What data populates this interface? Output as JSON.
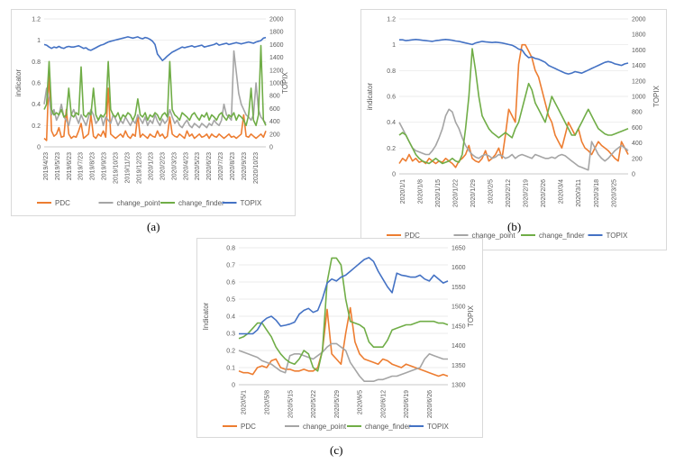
{
  "colors": {
    "PDC": "#ed7d31",
    "change_point": "#a5a5a5",
    "change_finder": "#70ad47",
    "TOPIX": "#4472c4"
  },
  "chart_data": [
    {
      "id": "a",
      "type": "line",
      "caption": "(a)",
      "ylabel": "indicator",
      "y2label": "TOPIX",
      "ylim": [
        0,
        1.2
      ],
      "yticks": [
        "0",
        "0.2",
        "0.4",
        "0.6",
        "0.8",
        "1",
        "1.2"
      ],
      "y2lim": [
        0,
        2000
      ],
      "y2ticks": [
        "0",
        "200",
        "400",
        "600",
        "800",
        "1000",
        "1200",
        "1400",
        "1600",
        "1800",
        "2000"
      ],
      "xticks": [
        "2019/4/23",
        "2019/5/23",
        "2019/6/23",
        "2019/7/23",
        "2019/8/23",
        "2019/9/23",
        "2019/10/23",
        "2019/11/23",
        "2019/12/23",
        "2020/1/23",
        "2020/2/23",
        "2020/3/23",
        "2020/4/23",
        "2020/5/23",
        "2020/6/23",
        "2020/7/23",
        "2020/8/23",
        "2020/9/23",
        "2020/10/23"
      ],
      "legend": [
        "PDC",
        "change_point",
        "change_finder",
        "TOPIX"
      ],
      "series": [
        {
          "name": "PDC",
          "axis": "left",
          "values": [
            0.08,
            0.06,
            0.72,
            0.15,
            0.1,
            0.12,
            0.18,
            0.09,
            0.1,
            0.35,
            0.12,
            0.08,
            0.1,
            0.09,
            0.15,
            0.22,
            0.08,
            0.1,
            0.12,
            0.3,
            0.1,
            0.08,
            0.12,
            0.1,
            0.15,
            0.09,
            0.55,
            0.12,
            0.1,
            0.08,
            0.1,
            0.12,
            0.09,
            0.15,
            0.1,
            0.08,
            0.12,
            0.1,
            0.3,
            0.09,
            0.12,
            0.1,
            0.08,
            0.12,
            0.1,
            0.09,
            0.15,
            0.1,
            0.12,
            0.08,
            0.1,
            0.28,
            0.12,
            0.1,
            0.09,
            0.12,
            0.1,
            0.08,
            0.15,
            0.1,
            0.12,
            0.08,
            0.1,
            0.12,
            0.09,
            0.1,
            0.12,
            0.08,
            0.12,
            0.1,
            0.09,
            0.12,
            0.1,
            0.08,
            0.1,
            0.12,
            0.09,
            0.1,
            0.08,
            0.1,
            0.12,
            0.3,
            0.1,
            0.09,
            0.12,
            0.1,
            0.08,
            0.1,
            0.12,
            0.09,
            0.15
          ]
        },
        {
          "name": "change_point",
          "axis": "left",
          "values": [
            0.4,
            0.55,
            0.45,
            0.3,
            0.35,
            0.25,
            0.3,
            0.4,
            0.28,
            0.25,
            0.2,
            0.3,
            0.35,
            0.28,
            0.22,
            0.3,
            0.25,
            0.2,
            0.28,
            0.35,
            0.3,
            0.22,
            0.25,
            0.3,
            0.2,
            0.28,
            0.25,
            0.22,
            0.3,
            0.26,
            0.2,
            0.25,
            0.22,
            0.28,
            0.24,
            0.2,
            0.25,
            0.22,
            0.3,
            0.26,
            0.22,
            0.28,
            0.2,
            0.25,
            0.22,
            0.3,
            0.24,
            0.2,
            0.26,
            0.22,
            0.25,
            0.35,
            0.28,
            0.22,
            0.25,
            0.2,
            0.18,
            0.22,
            0.25,
            0.2,
            0.18,
            0.22,
            0.2,
            0.18,
            0.22,
            0.2,
            0.18,
            0.22,
            0.2,
            0.25,
            0.22,
            0.2,
            0.25,
            0.4,
            0.3,
            0.28,
            0.25,
            0.9,
            0.7,
            0.5,
            0.4,
            0.35,
            0.3,
            0.28,
            0.25,
            0.3,
            0.6,
            0.35,
            0.28,
            0.25,
            0.22
          ]
        },
        {
          "name": "change_finder",
          "axis": "left",
          "values": [
            0.35,
            0.4,
            0.8,
            0.35,
            0.3,
            0.32,
            0.3,
            0.35,
            0.28,
            0.3,
            0.55,
            0.3,
            0.28,
            0.32,
            0.3,
            0.75,
            0.3,
            0.28,
            0.32,
            0.3,
            0.55,
            0.3,
            0.25,
            0.3,
            0.28,
            0.32,
            0.8,
            0.35,
            0.3,
            0.28,
            0.32,
            0.25,
            0.3,
            0.28,
            0.32,
            0.3,
            0.25,
            0.3,
            0.45,
            0.3,
            0.28,
            0.32,
            0.25,
            0.3,
            0.28,
            0.32,
            0.3,
            0.25,
            0.3,
            0.32,
            0.28,
            0.8,
            0.35,
            0.3,
            0.28,
            0.25,
            0.32,
            0.3,
            0.28,
            0.25,
            0.3,
            0.32,
            0.28,
            0.25,
            0.3,
            0.28,
            0.32,
            0.25,
            0.3,
            0.28,
            0.25,
            0.3,
            0.32,
            0.28,
            0.25,
            0.3,
            0.28,
            0.32,
            0.25,
            0.3,
            0.28,
            0.25,
            0.2,
            0.3,
            0.55,
            0.25,
            0.2,
            0.3,
            0.95,
            0.25,
            0.2
          ]
        },
        {
          "name": "TOPIX",
          "axis": "right",
          "values": [
            1600,
            1590,
            1560,
            1540,
            1560,
            1550,
            1570,
            1550,
            1540,
            1560,
            1570,
            1560,
            1560,
            1570,
            1580,
            1560,
            1540,
            1550,
            1520,
            1510,
            1530,
            1550,
            1570,
            1590,
            1600,
            1620,
            1640,
            1650,
            1660,
            1670,
            1680,
            1690,
            1700,
            1710,
            1720,
            1710,
            1700,
            1710,
            1720,
            1700,
            1690,
            1710,
            1700,
            1680,
            1650,
            1600,
            1450,
            1400,
            1350,
            1380,
            1420,
            1450,
            1480,
            1500,
            1520,
            1540,
            1560,
            1550,
            1560,
            1570,
            1580,
            1560,
            1570,
            1580,
            1590,
            1560,
            1570,
            1580,
            1590,
            1600,
            1620,
            1590,
            1600,
            1610,
            1620,
            1600,
            1610,
            1620,
            1630,
            1620,
            1610,
            1620,
            1630,
            1640,
            1630,
            1620,
            1640,
            1650,
            1660,
            1700,
            1710
          ]
        }
      ]
    },
    {
      "id": "b",
      "type": "line",
      "caption": "(b)",
      "ylabel": "indicator",
      "y2label": "TOPIX",
      "ylim": [
        0,
        1.2
      ],
      "yticks": [
        "0",
        "0.2",
        "0.4",
        "0.6",
        "0.8",
        "1",
        "1.2"
      ],
      "y2lim": [
        0,
        2000
      ],
      "y2ticks": [
        "0",
        "200",
        "400",
        "600",
        "800",
        "1000",
        "1200",
        "1400",
        "1600",
        "1800",
        "2000"
      ],
      "xticks": [
        "2020/1/1",
        "2020/1/8",
        "2020/1/15",
        "2020/1/22",
        "2020/1/29",
        "2020/2/5",
        "2020/2/12",
        "2020/2/19",
        "2020/2/26",
        "2020/3/4",
        "2020/3/11",
        "2020/3/18",
        "2020/3/25"
      ],
      "legend": [
        "PDC",
        "change_point",
        "change_finder",
        "TOPIX"
      ],
      "series": [
        {
          "name": "PDC",
          "axis": "left",
          "values": [
            0.08,
            0.12,
            0.1,
            0.15,
            0.1,
            0.12,
            0.09,
            0.1,
            0.08,
            0.12,
            0.1,
            0.08,
            0.1,
            0.09,
            0.12,
            0.1,
            0.08,
            0.05,
            0.1,
            0.12,
            0.15,
            0.22,
            0.12,
            0.1,
            0.09,
            0.12,
            0.18,
            0.1,
            0.12,
            0.15,
            0.2,
            0.12,
            0.3,
            0.5,
            0.45,
            0.4,
            0.85,
            1.0,
            1.0,
            0.95,
            0.9,
            0.8,
            0.75,
            0.65,
            0.55,
            0.45,
            0.4,
            0.3,
            0.25,
            0.2,
            0.3,
            0.4,
            0.35,
            0.3,
            0.35,
            0.25,
            0.2,
            0.18,
            0.15,
            0.2,
            0.25,
            0.22,
            0.2,
            0.18,
            0.15,
            0.12,
            0.1,
            0.25,
            0.2,
            0.15
          ]
        },
        {
          "name": "change_point",
          "axis": "left",
          "values": [
            0.4,
            0.35,
            0.3,
            0.25,
            0.2,
            0.18,
            0.17,
            0.16,
            0.15,
            0.15,
            0.18,
            0.22,
            0.28,
            0.35,
            0.45,
            0.5,
            0.48,
            0.4,
            0.35,
            0.28,
            0.22,
            0.18,
            0.15,
            0.13,
            0.12,
            0.14,
            0.15,
            0.14,
            0.12,
            0.13,
            0.15,
            0.14,
            0.12,
            0.13,
            0.15,
            0.12,
            0.14,
            0.15,
            0.14,
            0.13,
            0.12,
            0.15,
            0.14,
            0.13,
            0.12,
            0.12,
            0.13,
            0.12,
            0.14,
            0.15,
            0.14,
            0.12,
            0.1,
            0.08,
            0.06,
            0.05,
            0.04,
            0.03,
            0.25,
            0.2,
            0.15,
            0.12,
            0.1,
            0.12,
            0.15,
            0.18,
            0.2,
            0.22,
            0.2,
            0.18
          ]
        },
        {
          "name": "change_finder",
          "axis": "left",
          "values": [
            0.3,
            0.32,
            0.3,
            0.25,
            0.2,
            0.15,
            0.12,
            0.1,
            0.09,
            0.08,
            0.1,
            0.12,
            0.1,
            0.08,
            0.09,
            0.1,
            0.12,
            0.1,
            0.09,
            0.15,
            0.35,
            0.6,
            0.97,
            0.8,
            0.6,
            0.45,
            0.4,
            0.35,
            0.32,
            0.3,
            0.28,
            0.3,
            0.32,
            0.3,
            0.28,
            0.35,
            0.4,
            0.5,
            0.6,
            0.7,
            0.65,
            0.55,
            0.5,
            0.45,
            0.4,
            0.5,
            0.6,
            0.55,
            0.5,
            0.45,
            0.4,
            0.35,
            0.3,
            0.3,
            0.35,
            0.4,
            0.45,
            0.5,
            0.45,
            0.4,
            0.35,
            0.33,
            0.31,
            0.3,
            0.3,
            0.31,
            0.32,
            0.33,
            0.34,
            0.35
          ]
        },
        {
          "name": "TOPIX",
          "axis": "right",
          "values": [
            1730,
            1730,
            1720,
            1725,
            1730,
            1735,
            1730,
            1725,
            1720,
            1715,
            1710,
            1720,
            1725,
            1730,
            1735,
            1730,
            1725,
            1715,
            1710,
            1700,
            1690,
            1680,
            1670,
            1690,
            1700,
            1710,
            1705,
            1700,
            1695,
            1700,
            1695,
            1690,
            1680,
            1670,
            1660,
            1640,
            1610,
            1600,
            1540,
            1500,
            1510,
            1490,
            1480,
            1460,
            1440,
            1400,
            1380,
            1360,
            1340,
            1320,
            1300,
            1290,
            1300,
            1320,
            1310,
            1300,
            1320,
            1340,
            1360,
            1380,
            1400,
            1420,
            1440,
            1450,
            1440,
            1420,
            1410,
            1400,
            1420,
            1430
          ]
        }
      ]
    },
    {
      "id": "c",
      "type": "line",
      "caption": "(c)",
      "ylabel": "Indicator",
      "y2label": "TOPIX",
      "ylim": [
        0,
        0.8
      ],
      "yticks": [
        "0",
        "0.1",
        "0.2",
        "0.3",
        "0.4",
        "0.5",
        "0.6",
        "0.7",
        "0.8"
      ],
      "y2lim": [
        1300,
        1650
      ],
      "y2ticks": [
        "1300",
        "1350",
        "1400",
        "1450",
        "1500",
        "1550",
        "1600",
        "1650"
      ],
      "xticks": [
        "2020/5/1",
        "2020/5/8",
        "2020/5/15",
        "2020/5/22",
        "2020/5/29",
        "2020/6/5",
        "2020/6/12",
        "2020/6/19",
        "2020/6/26"
      ],
      "legend": [
        "PDC",
        "change_point",
        "change_finder",
        "TOPIX"
      ],
      "series": [
        {
          "name": "PDC",
          "axis": "left",
          "values": [
            0.08,
            0.07,
            0.07,
            0.06,
            0.1,
            0.11,
            0.1,
            0.14,
            0.15,
            0.1,
            0.09,
            0.09,
            0.08,
            0.08,
            0.09,
            0.08,
            0.08,
            0.1,
            0.2,
            0.44,
            0.18,
            0.15,
            0.12,
            0.3,
            0.45,
            0.25,
            0.18,
            0.15,
            0.14,
            0.13,
            0.12,
            0.15,
            0.14,
            0.12,
            0.11,
            0.1,
            0.12,
            0.11,
            0.1,
            0.09,
            0.08,
            0.07,
            0.06,
            0.05,
            0.06,
            0.05
          ]
        },
        {
          "name": "change_point",
          "axis": "left",
          "values": [
            0.2,
            0.19,
            0.18,
            0.17,
            0.16,
            0.14,
            0.13,
            0.12,
            0.1,
            0.08,
            0.07,
            0.17,
            0.18,
            0.18,
            0.17,
            0.16,
            0.15,
            0.17,
            0.19,
            0.22,
            0.24,
            0.24,
            0.22,
            0.2,
            0.13,
            0.09,
            0.05,
            0.02,
            0.02,
            0.02,
            0.03,
            0.03,
            0.04,
            0.05,
            0.05,
            0.06,
            0.07,
            0.08,
            0.09,
            0.1,
            0.15,
            0.18,
            0.17,
            0.16,
            0.15,
            0.15
          ]
        },
        {
          "name": "change_finder",
          "axis": "left",
          "values": [
            0.27,
            0.28,
            0.3,
            0.33,
            0.36,
            0.36,
            0.32,
            0.28,
            0.22,
            0.18,
            0.15,
            0.13,
            0.12,
            0.15,
            0.2,
            0.18,
            0.1,
            0.08,
            0.2,
            0.6,
            0.74,
            0.74,
            0.7,
            0.5,
            0.37,
            0.36,
            0.35,
            0.33,
            0.25,
            0.22,
            0.22,
            0.22,
            0.26,
            0.32,
            0.33,
            0.34,
            0.35,
            0.35,
            0.36,
            0.37,
            0.37,
            0.37,
            0.37,
            0.36,
            0.36,
            0.35
          ]
        },
        {
          "name": "TOPIX",
          "axis": "right",
          "values": [
            1430,
            1430,
            1430,
            1430,
            1440,
            1460,
            1470,
            1475,
            1465,
            1450,
            1452,
            1455,
            1460,
            1480,
            1490,
            1495,
            1485,
            1490,
            1520,
            1560,
            1570,
            1565,
            1575,
            1580,
            1590,
            1600,
            1610,
            1620,
            1625,
            1615,
            1590,
            1570,
            1550,
            1535,
            1585,
            1580,
            1578,
            1575,
            1575,
            1580,
            1570,
            1565,
            1580,
            1570,
            1560,
            1565
          ]
        }
      ]
    }
  ]
}
